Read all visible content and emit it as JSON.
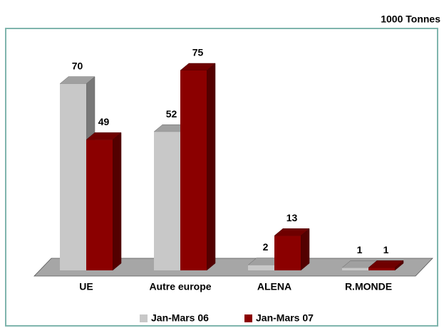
{
  "chart_data": {
    "type": "bar3d",
    "unit_label": "1000 Tonnes",
    "categories": [
      "UE",
      "Autre europe",
      "ALENA",
      "R.MONDE"
    ],
    "series": [
      {
        "name": "Jan-Mars 06",
        "color": "#c8c8c8",
        "values": [
          70,
          52,
          2,
          1
        ]
      },
      {
        "name": "Jan-Mars 07",
        "color": "#8b0000",
        "values": [
          49,
          75,
          13,
          1
        ]
      }
    ],
    "legend": "bottom"
  }
}
